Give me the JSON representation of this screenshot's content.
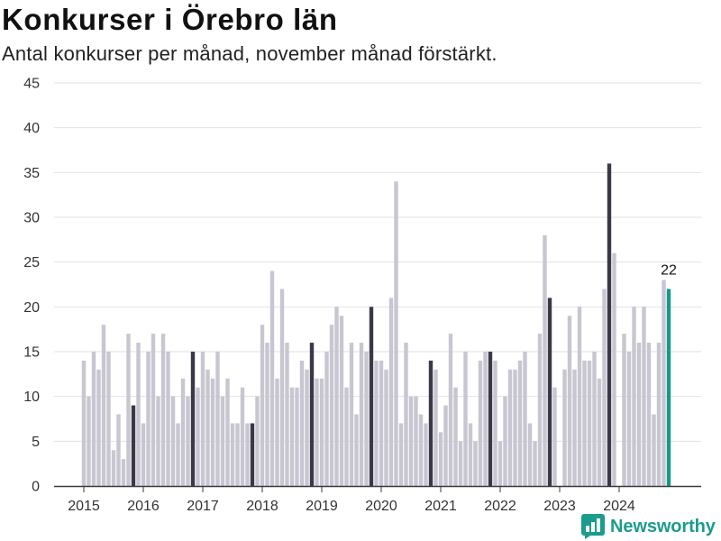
{
  "chart_data": {
    "type": "bar",
    "title": "Konkurser i Örebro län",
    "subtitle": "Antal konkurser per månad, november månad förstärkt.",
    "ylim": [
      0,
      45
    ],
    "yticks": [
      0,
      5,
      10,
      15,
      20,
      25,
      30,
      35,
      40,
      45
    ],
    "xticks": [
      "2015",
      "2016",
      "2017",
      "2018",
      "2019",
      "2020",
      "2021",
      "2022",
      "2023",
      "2024"
    ],
    "grid": "horizontal",
    "highlighted_month": "11",
    "colors": {
      "bar": "#c7c6d1",
      "highlight": "#3a3948",
      "latest": "#17998a",
      "grid": "#e2e2e2",
      "axis": "#3a3a3a"
    },
    "x": [
      "2015-01",
      "2015-02",
      "2015-03",
      "2015-04",
      "2015-05",
      "2015-06",
      "2015-07",
      "2015-08",
      "2015-09",
      "2015-10",
      "2015-11",
      "2015-12",
      "2016-01",
      "2016-02",
      "2016-03",
      "2016-04",
      "2016-05",
      "2016-06",
      "2016-07",
      "2016-08",
      "2016-09",
      "2016-10",
      "2016-11",
      "2016-12",
      "2017-01",
      "2017-02",
      "2017-03",
      "2017-04",
      "2017-05",
      "2017-06",
      "2017-07",
      "2017-08",
      "2017-09",
      "2017-10",
      "2017-11",
      "2017-12",
      "2018-01",
      "2018-02",
      "2018-03",
      "2018-04",
      "2018-05",
      "2018-06",
      "2018-07",
      "2018-08",
      "2018-09",
      "2018-10",
      "2018-11",
      "2018-12",
      "2019-01",
      "2019-02",
      "2019-03",
      "2019-04",
      "2019-05",
      "2019-06",
      "2019-07",
      "2019-08",
      "2019-09",
      "2019-10",
      "2019-11",
      "2019-12",
      "2020-01",
      "2020-02",
      "2020-03",
      "2020-04",
      "2020-05",
      "2020-06",
      "2020-07",
      "2020-08",
      "2020-09",
      "2020-10",
      "2020-11",
      "2020-12",
      "2021-01",
      "2021-02",
      "2021-03",
      "2021-04",
      "2021-05",
      "2021-06",
      "2021-07",
      "2021-08",
      "2021-09",
      "2021-10",
      "2021-11",
      "2021-12",
      "2022-01",
      "2022-02",
      "2022-03",
      "2022-04",
      "2022-05",
      "2022-06",
      "2022-07",
      "2022-08",
      "2022-09",
      "2022-10",
      "2022-11",
      "2022-12",
      "2023-01",
      "2023-02",
      "2023-03",
      "2023-04",
      "2023-05",
      "2023-06",
      "2023-07",
      "2023-08",
      "2023-09",
      "2023-10",
      "2023-11",
      "2023-12",
      "2024-01",
      "2024-02",
      "2024-03",
      "2024-04",
      "2024-05",
      "2024-06",
      "2024-07",
      "2024-08",
      "2024-09",
      "2024-10",
      "2024-11"
    ],
    "values": [
      14,
      10,
      15,
      13,
      18,
      15,
      4,
      8,
      3,
      17,
      9,
      16,
      7,
      15,
      17,
      10,
      17,
      15,
      10,
      7,
      12,
      10,
      15,
      11,
      15,
      13,
      12,
      15,
      10,
      12,
      7,
      7,
      11,
      7,
      7,
      10,
      18,
      16,
      24,
      12,
      22,
      16,
      11,
      11,
      14,
      13,
      16,
      12,
      12,
      15,
      18,
      20,
      19,
      11,
      16,
      8,
      16,
      15,
      20,
      14,
      14,
      13,
      21,
      34,
      7,
      16,
      10,
      10,
      8,
      7,
      14,
      13,
      6,
      9,
      17,
      11,
      5,
      15,
      7,
      5,
      14,
      15,
      15,
      14,
      5,
      10,
      13,
      13,
      14,
      15,
      7,
      5,
      17,
      28,
      21,
      11,
      0,
      13,
      19,
      13,
      20,
      14,
      14,
      15,
      12,
      22,
      36,
      26,
      0,
      17,
      15,
      20,
      16,
      20,
      16,
      8,
      16,
      23,
      22
    ],
    "annotations": [
      {
        "x": "2024-11",
        "text": "22"
      }
    ]
  },
  "brand": {
    "name": "Newsworthy",
    "icon": "newsworthy-logo-icon",
    "color": "#1b9c8c"
  }
}
